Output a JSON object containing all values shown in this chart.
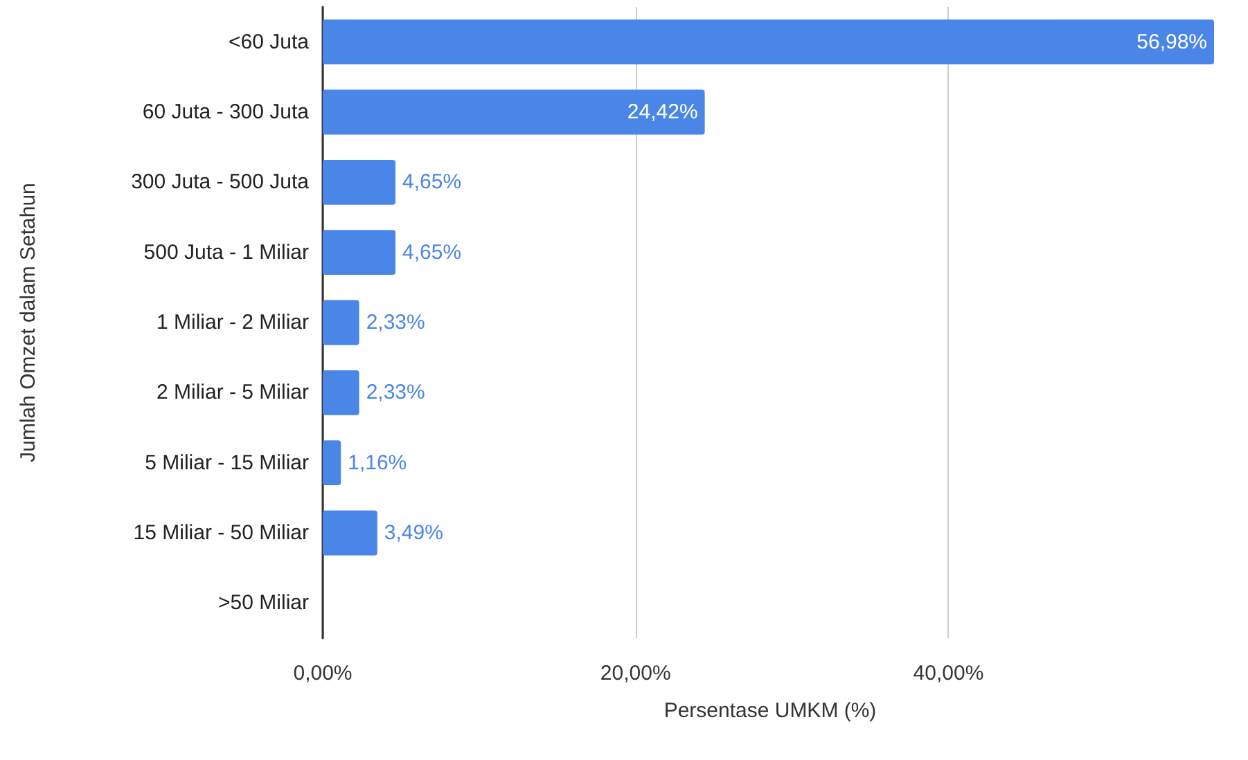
{
  "chart_data": {
    "type": "bar",
    "orientation": "horizontal",
    "xlabel": "Persentase UMKM (%)",
    "ylabel": "Jumlah Omzet dalam Setahun",
    "categories": [
      "<60 Juta",
      "60 Juta - 300 Juta",
      "300 Juta - 500 Juta",
      "500 Juta - 1 Miliar",
      "1 Miliar - 2 Miliar",
      "2 Miliar - 5 Miliar",
      "5 Miliar - 15 Miliar",
      "15 Miliar - 50 Miliar",
      ">50 Miliar"
    ],
    "values": [
      56.98,
      24.42,
      4.65,
      4.65,
      2.33,
      2.33,
      1.16,
      3.49,
      0
    ],
    "value_labels": [
      "56,98%",
      "24,42%",
      "4,65%",
      "4,65%",
      "2,33%",
      "2,33%",
      "1,16%",
      "3,49%",
      null
    ],
    "color": "#4a86e8",
    "xlim": [
      0,
      57.2
    ],
    "xticks": [
      {
        "value": 0,
        "label": "0,00%"
      },
      {
        "value": 20,
        "label": "20,00%"
      },
      {
        "value": 40,
        "label": "40,00%"
      }
    ],
    "grid": "x"
  }
}
